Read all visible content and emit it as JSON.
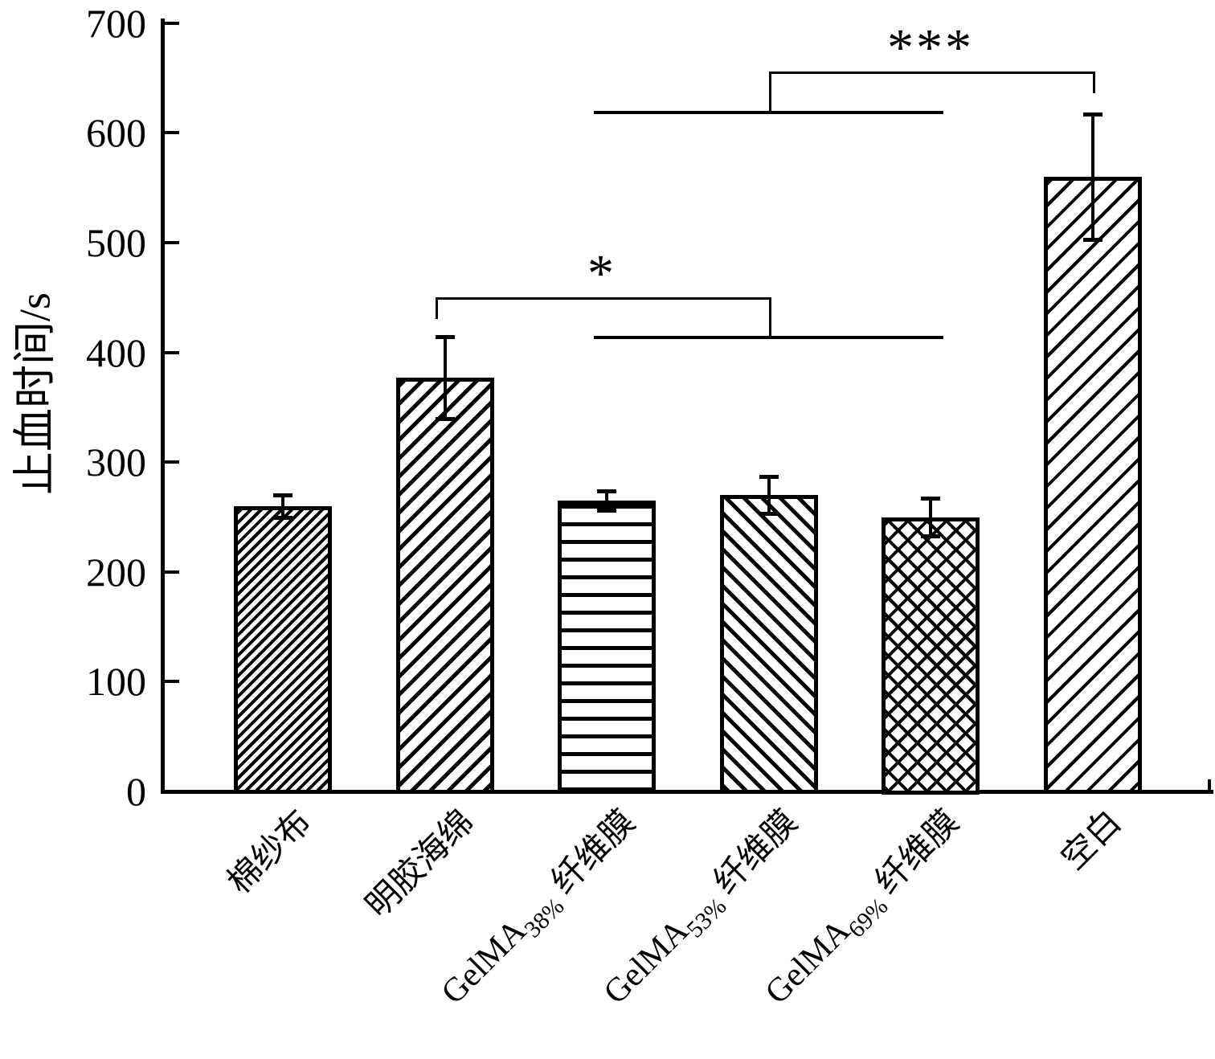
{
  "chart_data": {
    "type": "bar",
    "title": "",
    "xlabel": "",
    "ylabel": "止血时间/s",
    "ylim": [
      0,
      700
    ],
    "yticks": [
      0,
      100,
      200,
      300,
      400,
      500,
      600,
      700
    ],
    "grid": false,
    "legend_position": "none",
    "categories": [
      {
        "text": "棉纱布",
        "prefix": "棉纱布",
        "sub": "",
        "suffix": ""
      },
      {
        "text": "明胶海绵",
        "prefix": "明胶海绵",
        "sub": "",
        "suffix": ""
      },
      {
        "text": "GelMA38% 纤维膜",
        "prefix": "GelMA",
        "sub": "38%",
        "suffix": " 纤维膜"
      },
      {
        "text": "GelMA53% 纤维膜",
        "prefix": "GelMA",
        "sub": "53%",
        "suffix": " 纤维膜"
      },
      {
        "text": "GelMA69% 纤维膜",
        "prefix": "GelMA",
        "sub": "69%",
        "suffix": " 纤维膜"
      },
      {
        "text": "空白",
        "prefix": "空白",
        "sub": "",
        "suffix": ""
      }
    ],
    "values": [
      260,
      377,
      265,
      270,
      250,
      560
    ],
    "errors": [
      10,
      37,
      9,
      17,
      17,
      57
    ],
    "hatches": [
      "diag-forward-dense",
      "diag-forward",
      "horizontal",
      "diag-back",
      "crosshatch",
      "diag-forward-wide"
    ],
    "colors": {
      "bar_fill": "#ffffff",
      "line": "#000000",
      "background": "#ffffff"
    },
    "significance": [
      {
        "label": "*",
        "single_index": 1,
        "group_indices": [
          2,
          3,
          4
        ],
        "single_side": "left",
        "line_value": 450,
        "group_line_value": 415
      },
      {
        "label": "***",
        "single_index": 5,
        "group_indices": [
          2,
          3,
          4
        ],
        "single_side": "right",
        "line_value": 656,
        "group_line_value": 620
      }
    ]
  }
}
